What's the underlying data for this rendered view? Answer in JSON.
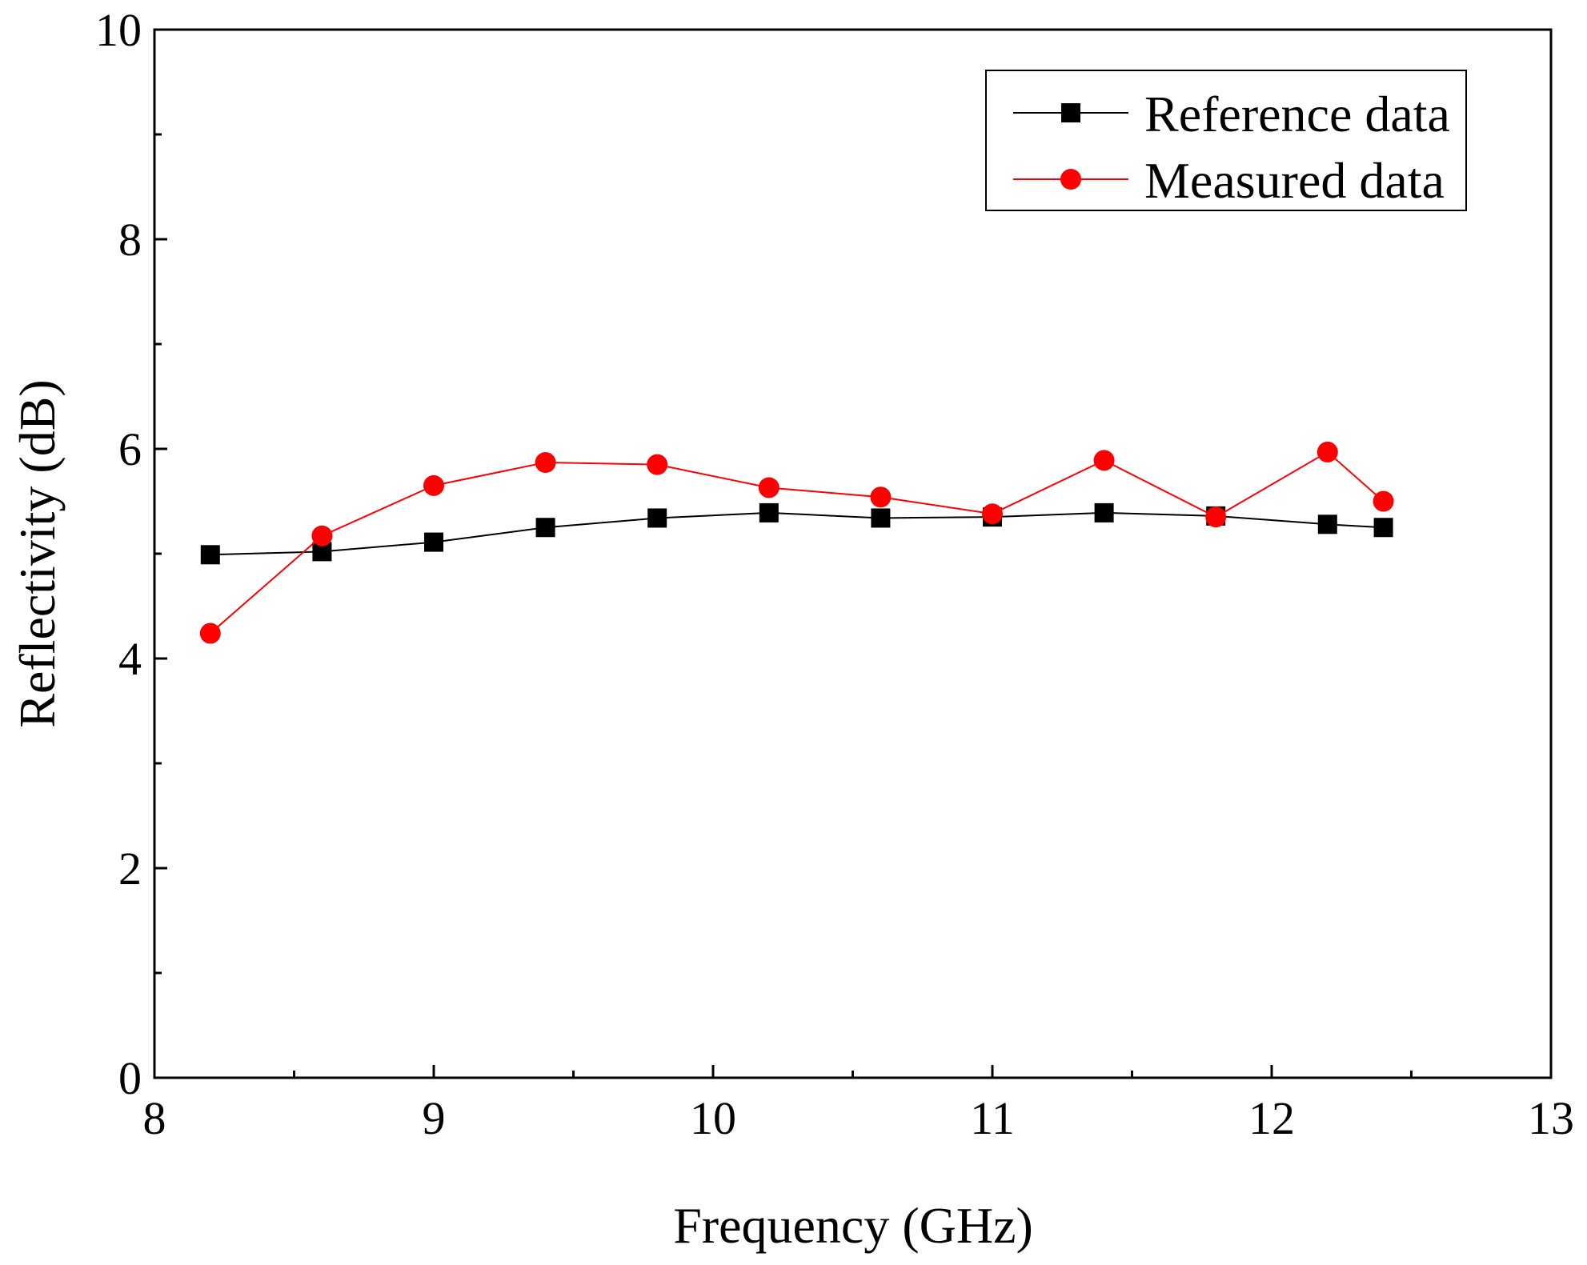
{
  "chart_data": {
    "type": "line",
    "title": "",
    "xlabel": "Frequency (GHz)",
    "ylabel": "Reflectivity (dB)",
    "xlim": [
      8,
      13
    ],
    "ylim": [
      0,
      10
    ],
    "xticks": [
      8,
      9,
      10,
      11,
      12,
      13
    ],
    "yticks": [
      0,
      2,
      4,
      6,
      8,
      10
    ],
    "xtick_labels": [
      "8",
      "9",
      "10",
      "11",
      "12",
      "13"
    ],
    "ytick_labels": [
      "0",
      "2",
      "4",
      "6",
      "8",
      "10"
    ],
    "x_minor_step": 0.5,
    "y_minor_step": 1,
    "grid": false,
    "legend_position": "top-right",
    "x": [
      8.2,
      8.6,
      9.0,
      9.4,
      9.8,
      10.2,
      10.6,
      11.0,
      11.4,
      11.8,
      12.2,
      12.4
    ],
    "series": [
      {
        "name": "Reference data",
        "color": "#000000",
        "marker": "square",
        "values": [
          4.99,
          5.02,
          5.11,
          5.25,
          5.34,
          5.39,
          5.34,
          5.35,
          5.39,
          5.36,
          5.28,
          5.25
        ]
      },
      {
        "name": "Measured data",
        "color": "#ff0000",
        "marker": "circle",
        "values": [
          4.24,
          5.17,
          5.65,
          5.87,
          5.85,
          5.63,
          5.54,
          5.38,
          5.89,
          5.35,
          5.97,
          5.5
        ]
      }
    ]
  }
}
